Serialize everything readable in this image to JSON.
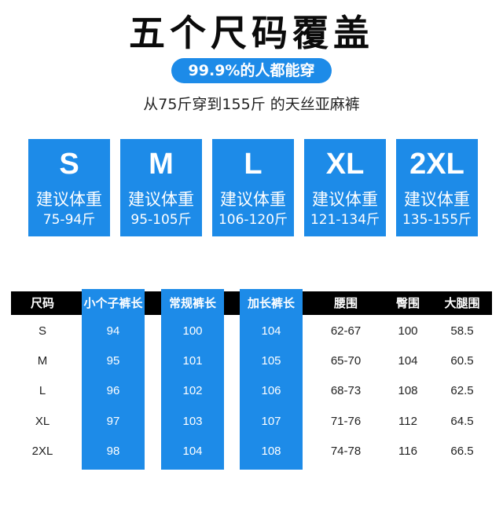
{
  "title": "五个尺码覆盖",
  "badge": "99.9%的人都能穿",
  "subtitle": "从75斤穿到155斤 的天丝亚麻裤",
  "accent_color": "#1d8be8",
  "cards": [
    {
      "size": "S",
      "label": "建议体重",
      "range": "75-94斤"
    },
    {
      "size": "M",
      "label": "建议体重",
      "range": "95-105斤"
    },
    {
      "size": "L",
      "label": "建议体重",
      "range": "106-120斤"
    },
    {
      "size": "XL",
      "label": "建议体重",
      "range": "121-134斤"
    },
    {
      "size": "2XL",
      "label": "建议体重",
      "range": "135-155斤"
    }
  ],
  "table": {
    "headers": [
      "尺码",
      "小个子裤长",
      "常规裤长",
      "加长裤长",
      "腰围",
      "臀围",
      "大腿围"
    ],
    "rows": [
      [
        "S",
        "94",
        "100",
        "104",
        "62-67",
        "100",
        "58.5"
      ],
      [
        "M",
        "95",
        "101",
        "105",
        "65-70",
        "104",
        "60.5"
      ],
      [
        "L",
        "96",
        "102",
        "106",
        "68-73",
        "108",
        "62.5"
      ],
      [
        "XL",
        "97",
        "103",
        "107",
        "71-76",
        "112",
        "64.5"
      ],
      [
        "2XL",
        "98",
        "104",
        "108",
        "74-78",
        "116",
        "66.5"
      ]
    ]
  }
}
